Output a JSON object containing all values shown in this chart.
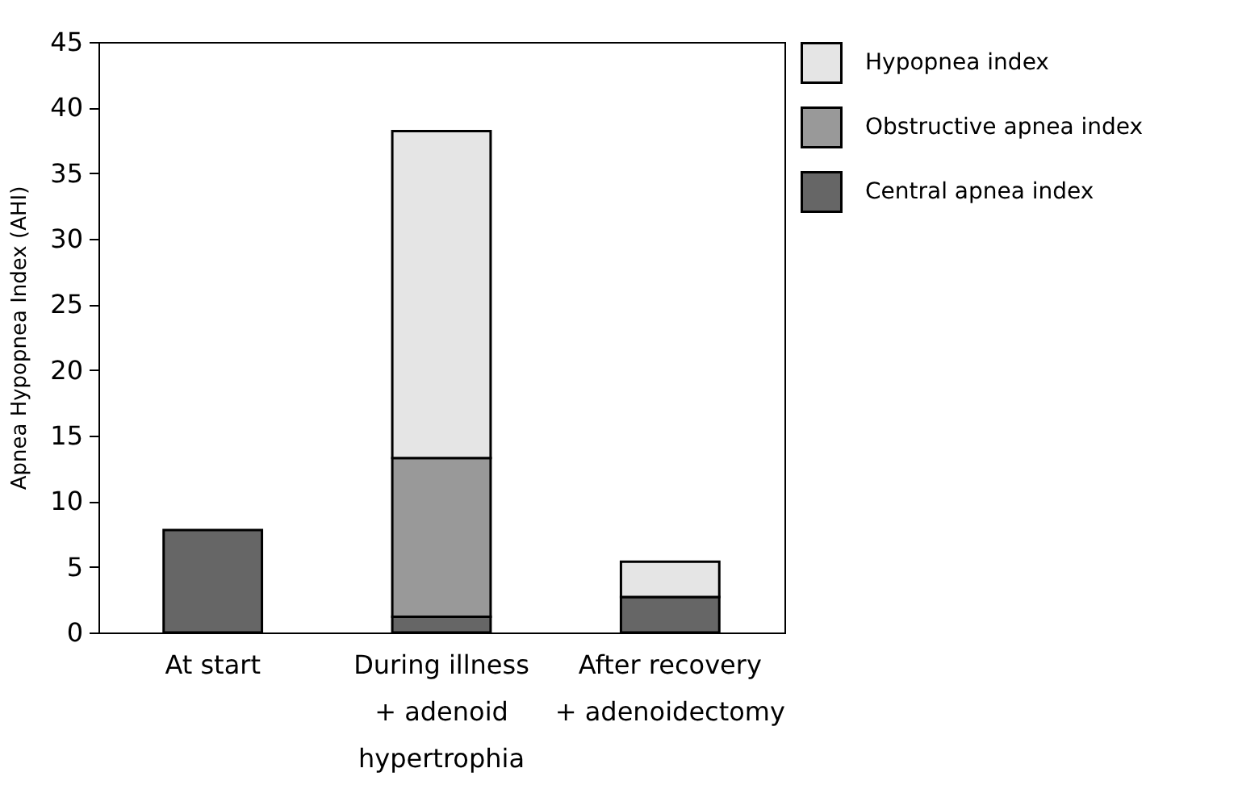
{
  "chart_data": {
    "type": "bar",
    "stacked": true,
    "ylabel": "Apnea Hypopnea Index (AHI)",
    "categories": [
      "At start",
      "During illness + adenoid hypertrophia",
      "After recovery + adenoidectomy"
    ],
    "series": [
      {
        "name": "Central apnea index",
        "color": "#666666",
        "values": [
          7.8,
          1.2,
          2.7
        ]
      },
      {
        "name": "Obstructive apnea index",
        "color": "#999999",
        "values": [
          null,
          12.1,
          null
        ]
      },
      {
        "name": "Hypopnea index",
        "color": "#e5e5e5",
        "values": [
          null,
          24.9,
          2.7
        ]
      }
    ],
    "ylim": [
      0,
      45
    ],
    "yticks": [
      0,
      5,
      10,
      15,
      20,
      25,
      30,
      35,
      40,
      45
    ],
    "grid": false,
    "legend": "right"
  }
}
